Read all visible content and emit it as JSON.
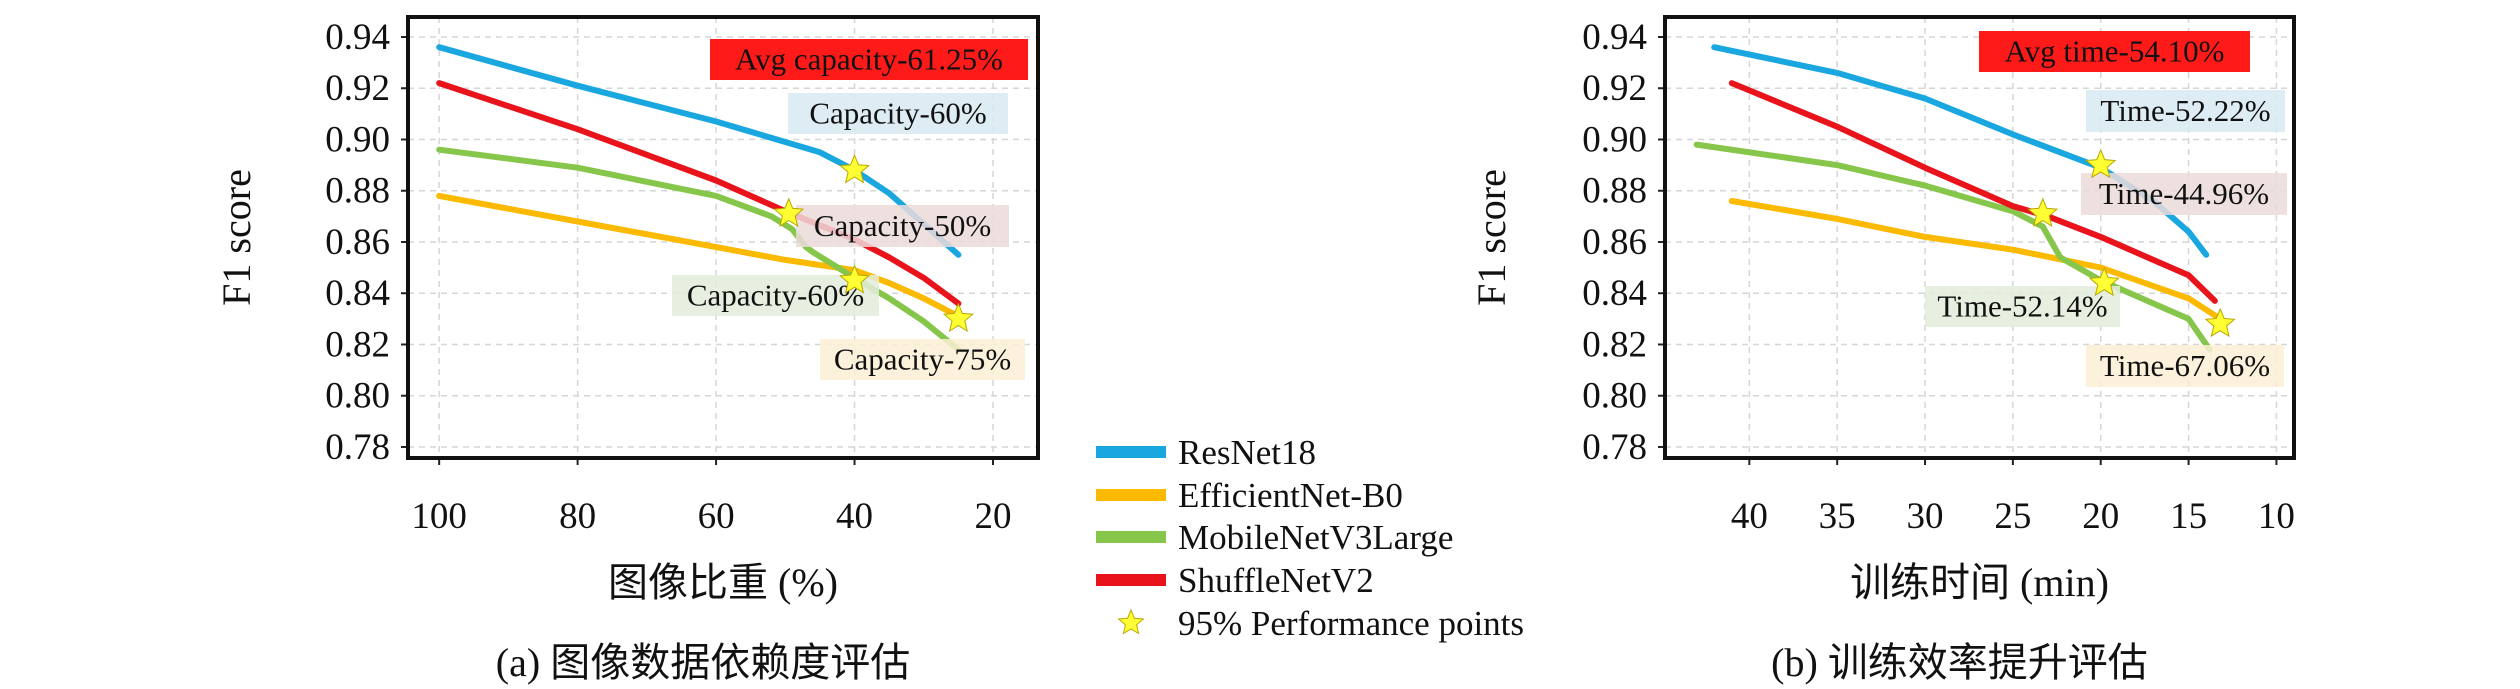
{
  "legend": {
    "items": [
      {
        "label": "ResNet18",
        "color": "#1aa7e0",
        "kind": "line"
      },
      {
        "label": "EfficientNet-B0",
        "color": "#fbb900",
        "kind": "line"
      },
      {
        "label": "MobileNetV3Large",
        "color": "#86c64a",
        "kind": "line"
      },
      {
        "label": "ShuffleNetV2",
        "color": "#e8131b",
        "kind": "line"
      },
      {
        "label": "95% Performance points",
        "color": "#ffff33",
        "kind": "star"
      }
    ]
  },
  "chart_data": [
    {
      "type": "line",
      "caption": "(a) 图像数据依赖度评估",
      "xlabel": "图像比重 (%)",
      "ylabel": "F1 score",
      "xlim": [
        104.5,
        13.5
      ],
      "ylim": [
        0.7757,
        0.9478
      ],
      "x_reversed": true,
      "grid": true,
      "xticks": [
        100,
        80,
        60,
        40,
        20
      ],
      "xtick_labels": [
        "100",
        "80",
        "60",
        "40",
        "20"
      ],
      "yticks": [
        0.78,
        0.8,
        0.82,
        0.84,
        0.86,
        0.88,
        0.9,
        0.92,
        0.94
      ],
      "ytick_labels": [
        "0.78",
        "0.80",
        "0.82",
        "0.84",
        "0.86",
        "0.88",
        "0.90",
        "0.92",
        "0.94"
      ],
      "series": [
        {
          "name": "ResNet18",
          "color": "#1aa7e0",
          "x": [
            100,
            80,
            60,
            50,
            45,
            40,
            35,
            30,
            25
          ],
          "y": [
            0.936,
            0.921,
            0.907,
            0.899,
            0.895,
            0.888,
            0.879,
            0.867,
            0.855
          ]
        },
        {
          "name": "EfficientNet-B0",
          "color": "#fbb900",
          "x": [
            100,
            80,
            60,
            50,
            40,
            35,
            30,
            25
          ],
          "y": [
            0.878,
            0.868,
            0.858,
            0.853,
            0.849,
            0.844,
            0.838,
            0.831
          ]
        },
        {
          "name": "MobileNetV3Large",
          "color": "#86c64a",
          "x": [
            100,
            80,
            60,
            52,
            49,
            47,
            46,
            40,
            35,
            30,
            25
          ],
          "y": [
            0.896,
            0.889,
            0.878,
            0.87,
            0.865,
            0.858,
            0.856,
            0.846,
            0.838,
            0.829,
            0.818
          ]
        },
        {
          "name": "ShuffleNetV2",
          "color": "#e8131b",
          "x": [
            100,
            80,
            60,
            50,
            40,
            35,
            30,
            25
          ],
          "y": [
            0.922,
            0.904,
            0.884,
            0.872,
            0.861,
            0.854,
            0.846,
            0.836
          ]
        }
      ],
      "stars": [
        {
          "x": 40,
          "y": 0.888
        },
        {
          "x": 49.5,
          "y": 0.871
        },
        {
          "x": 40,
          "y": 0.845
        },
        {
          "x": 25,
          "y": 0.83
        }
      ],
      "annotations": [
        {
          "text": "Avg capacity-61.25%",
          "bg": "#ff1a1a",
          "box": "avg"
        },
        {
          "text": "Capacity-60%",
          "bg": "#d8e9f1",
          "box": "blue"
        },
        {
          "text": "Capacity-50%",
          "bg": "#ecdada",
          "box": "pink"
        },
        {
          "text": "Capacity-60%",
          "bg": "#e3ecda",
          "box": "green"
        },
        {
          "text": "Capacity-75%",
          "bg": "#fcefd5",
          "box": "orange"
        }
      ]
    },
    {
      "type": "line",
      "caption": "(b) 训练效率提升评估",
      "xlabel": "训练时间 (min)",
      "ylabel": "F1 score",
      "xlim": [
        44.8,
        9.0
      ],
      "ylim": [
        0.7757,
        0.9478
      ],
      "x_reversed": true,
      "grid": true,
      "xticks": [
        40,
        35,
        30,
        25,
        20,
        15,
        10
      ],
      "xtick_labels": [
        "40",
        "35",
        "30",
        "25",
        "20",
        "15",
        "10"
      ],
      "yticks": [
        0.78,
        0.8,
        0.82,
        0.84,
        0.86,
        0.88,
        0.9,
        0.92,
        0.94
      ],
      "ytick_labels": [
        "0.78",
        "0.80",
        "0.82",
        "0.84",
        "0.86",
        "0.88",
        "0.90",
        "0.92",
        "0.94"
      ],
      "series": [
        {
          "name": "ResNet18",
          "color": "#1aa7e0",
          "x": [
            42,
            35,
            30,
            25,
            20,
            17,
            15,
            14
          ],
          "y": [
            0.936,
            0.926,
            0.916,
            0.902,
            0.889,
            0.876,
            0.864,
            0.855
          ]
        },
        {
          "name": "EfficientNet-B0",
          "color": "#fbb900",
          "x": [
            41,
            35,
            30,
            25,
            20,
            15,
            13.2
          ],
          "y": [
            0.876,
            0.869,
            0.862,
            0.857,
            0.85,
            0.838,
            0.83
          ]
        },
        {
          "name": "MobileNetV3Large",
          "color": "#86c64a",
          "x": [
            43,
            35,
            30,
            25,
            23.3,
            22.8,
            22.3,
            20,
            15,
            13.8
          ],
          "y": [
            0.898,
            0.89,
            0.882,
            0.872,
            0.866,
            0.86,
            0.854,
            0.845,
            0.83,
            0.818
          ]
        },
        {
          "name": "ShuffleNetV2",
          "color": "#e8131b",
          "x": [
            41,
            35,
            30,
            25,
            23,
            20,
            15,
            13.5
          ],
          "y": [
            0.922,
            0.905,
            0.889,
            0.874,
            0.87,
            0.862,
            0.847,
            0.837
          ]
        }
      ],
      "stars": [
        {
          "x": 20,
          "y": 0.89
        },
        {
          "x": 23.3,
          "y": 0.871
        },
        {
          "x": 19.8,
          "y": 0.844
        },
        {
          "x": 13.2,
          "y": 0.828
        }
      ],
      "annotations": [
        {
          "text": "Avg time-54.10%",
          "bg": "#ff1a1a",
          "box": "avg"
        },
        {
          "text": "Time-52.22%",
          "bg": "#d8e9f1",
          "box": "blue"
        },
        {
          "text": "Time-44.96%",
          "bg": "#ecdada",
          "box": "pink"
        },
        {
          "text": "Time-52.14%",
          "bg": "#e3ecda",
          "box": "green"
        },
        {
          "text": "Time-67.06%",
          "bg": "#fcefd5",
          "box": "orange"
        }
      ]
    }
  ]
}
